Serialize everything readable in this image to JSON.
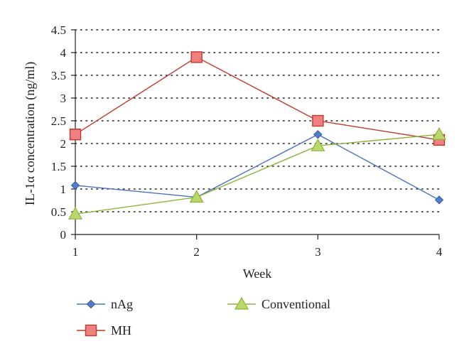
{
  "chart_data": {
    "type": "line",
    "xlabel": "Week",
    "ylabel": "IL-1α concentration (ng/ml)",
    "x": [
      1,
      2,
      3,
      4
    ],
    "x_tick_labels": [
      "1",
      "2",
      "3",
      "4"
    ],
    "y_tick_labels": [
      "0",
      "0.5",
      "1",
      "1.5",
      "2",
      "2.5",
      "3",
      "3.5",
      "4",
      "4.5"
    ],
    "ylim": [
      0,
      4.5
    ],
    "grid": "horizontal dotted",
    "legend_position": "bottom",
    "series": [
      {
        "name": "nAg",
        "values": [
          1.08,
          0.82,
          2.2,
          0.76
        ],
        "color": "#4a73be",
        "marker": "diamond"
      },
      {
        "name": "MH",
        "values": [
          2.2,
          3.9,
          2.5,
          2.08
        ],
        "color": "#c0392b",
        "marker_fill": "#f08080",
        "marker": "square"
      },
      {
        "name": "Conventional",
        "values": [
          0.45,
          0.82,
          1.95,
          2.2
        ],
        "color": "#8db33a",
        "marker_fill": "#b8d96a",
        "marker": "triangle"
      }
    ]
  }
}
